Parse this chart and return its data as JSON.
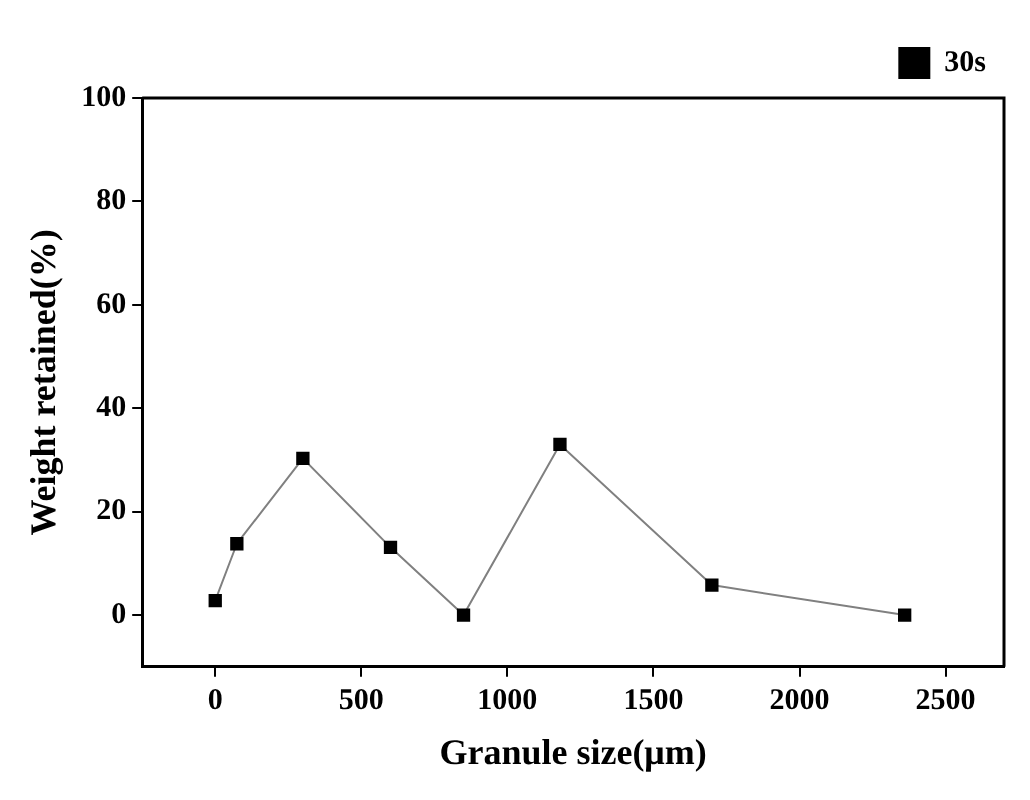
{
  "chart_data": {
    "type": "line",
    "xlabel": "Granule size(μm)",
    "ylabel": "Weight retained(%)",
    "x": [
      0,
      74,
      300,
      600,
      850,
      1180,
      1700,
      2360
    ],
    "series": [
      {
        "name": "30s",
        "color": "#000000",
        "values": [
          2.8,
          13.8,
          30.3,
          13.1,
          0,
          33,
          5.8,
          0
        ]
      }
    ],
    "xlim": [
      -250,
      2700
    ],
    "xticks": [
      0,
      500,
      1000,
      1500,
      2000,
      2500
    ],
    "ylim": [
      -10,
      100
    ],
    "yticks": [
      0,
      20,
      40,
      60,
      80,
      100
    ],
    "grid": false,
    "legend": "top right",
    "marker": "square",
    "line_style": "solid"
  }
}
